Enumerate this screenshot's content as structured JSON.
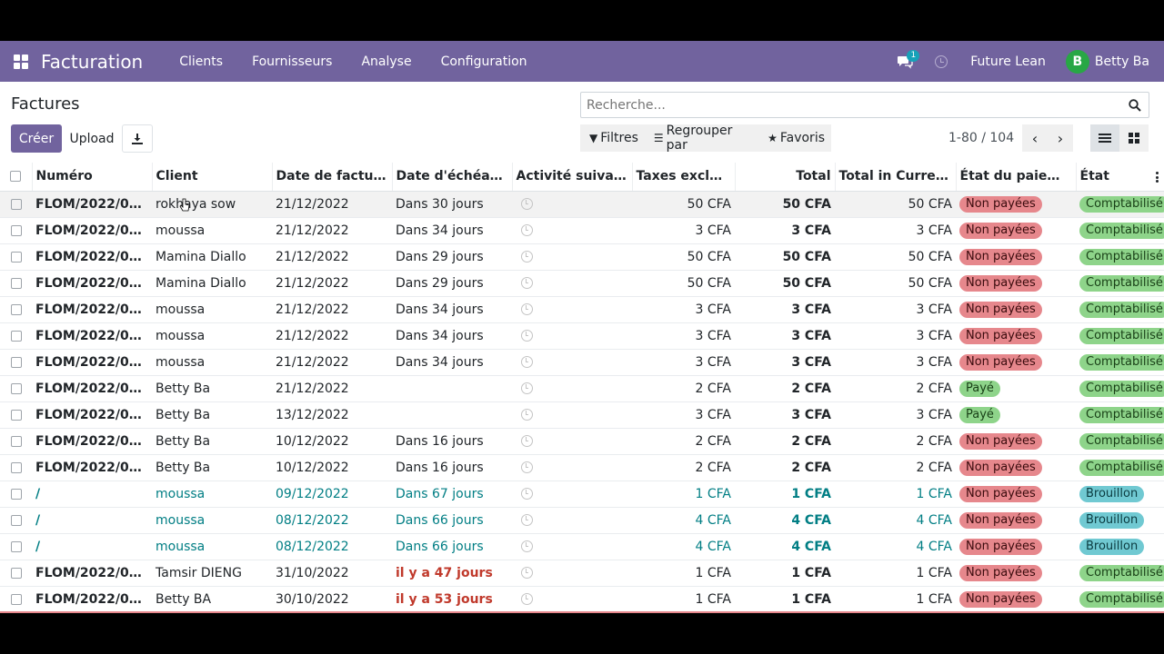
{
  "navbar": {
    "brand": "Facturation",
    "menu": [
      "Clients",
      "Fournisseurs",
      "Analyse",
      "Configuration"
    ],
    "chat_badge": "1",
    "company": "Future Lean",
    "user_initial": "B",
    "user_name": "Betty Ba",
    "color": "#71639e"
  },
  "control": {
    "title": "Factures",
    "create_label": "Créer",
    "upload_label": "Upload",
    "search_placeholder": "Recherche...",
    "filters_label": "Filtres",
    "group_by_label": "Regrouper par",
    "favorites_label": "Favoris",
    "pager": "1-80 / 104"
  },
  "table": {
    "columns": [
      "Numéro",
      "Client",
      "Date de factura...",
      "Date d'échéanc...",
      "Activité suiva...",
      "Taxes exclues...",
      "Total",
      "Total in Curren...",
      "État du paieme...",
      "État"
    ],
    "rows": [
      {
        "numero": "FLOM/2022/00...",
        "client": "rokhaya sow",
        "date": "21/12/2022",
        "due": "Dans 30 jours",
        "untaxed": "50 CFA",
        "total": "50 CFA",
        "total_cur": "50 CFA",
        "payment": "Non payées",
        "state": "Comptabilisé",
        "draft": false,
        "overdue": false
      },
      {
        "numero": "FLOM/2022/00...",
        "client": "moussa",
        "date": "21/12/2022",
        "due": "Dans 34 jours",
        "untaxed": "3 CFA",
        "total": "3 CFA",
        "total_cur": "3 CFA",
        "payment": "Non payées",
        "state": "Comptabilisé",
        "draft": false,
        "overdue": false
      },
      {
        "numero": "FLOM/2022/00...",
        "client": "Mamina Diallo",
        "date": "21/12/2022",
        "due": "Dans 29 jours",
        "untaxed": "50 CFA",
        "total": "50 CFA",
        "total_cur": "50 CFA",
        "payment": "Non payées",
        "state": "Comptabilisé",
        "draft": false,
        "overdue": false
      },
      {
        "numero": "FLOM/2022/00...",
        "client": "Mamina Diallo",
        "date": "21/12/2022",
        "due": "Dans 29 jours",
        "untaxed": "50 CFA",
        "total": "50 CFA",
        "total_cur": "50 CFA",
        "payment": "Non payées",
        "state": "Comptabilisé",
        "draft": false,
        "overdue": false
      },
      {
        "numero": "FLOM/2022/00...",
        "client": "moussa",
        "date": "21/12/2022",
        "due": "Dans 34 jours",
        "untaxed": "3 CFA",
        "total": "3 CFA",
        "total_cur": "3 CFA",
        "payment": "Non payées",
        "state": "Comptabilisé",
        "draft": false,
        "overdue": false
      },
      {
        "numero": "FLOM/2022/00...",
        "client": "moussa",
        "date": "21/12/2022",
        "due": "Dans 34 jours",
        "untaxed": "3 CFA",
        "total": "3 CFA",
        "total_cur": "3 CFA",
        "payment": "Non payées",
        "state": "Comptabilisé",
        "draft": false,
        "overdue": false
      },
      {
        "numero": "FLOM/2022/00...",
        "client": "moussa",
        "date": "21/12/2022",
        "due": "Dans 34 jours",
        "untaxed": "3 CFA",
        "total": "3 CFA",
        "total_cur": "3 CFA",
        "payment": "Non payées",
        "state": "Comptabilisé",
        "draft": false,
        "overdue": false
      },
      {
        "numero": "FLOM/2022/00...",
        "client": "Betty Ba",
        "date": "21/12/2022",
        "due": "",
        "untaxed": "2 CFA",
        "total": "2 CFA",
        "total_cur": "2 CFA",
        "payment": "Payé",
        "state": "Comptabilisé",
        "draft": false,
        "overdue": false
      },
      {
        "numero": "FLOM/2022/00...",
        "client": "Betty Ba",
        "date": "13/12/2022",
        "due": "",
        "untaxed": "3 CFA",
        "total": "3 CFA",
        "total_cur": "3 CFA",
        "payment": "Payé",
        "state": "Comptabilisé",
        "draft": false,
        "overdue": false
      },
      {
        "numero": "FLOM/2022/00...",
        "client": "Betty Ba",
        "date": "10/12/2022",
        "due": "Dans 16 jours",
        "untaxed": "2 CFA",
        "total": "2 CFA",
        "total_cur": "2 CFA",
        "payment": "Non payées",
        "state": "Comptabilisé",
        "draft": false,
        "overdue": false
      },
      {
        "numero": "FLOM/2022/00...",
        "client": "Betty Ba",
        "date": "10/12/2022",
        "due": "Dans 16 jours",
        "untaxed": "2 CFA",
        "total": "2 CFA",
        "total_cur": "2 CFA",
        "payment": "Non payées",
        "state": "Comptabilisé",
        "draft": false,
        "overdue": false
      },
      {
        "numero": "/",
        "client": "moussa",
        "date": "09/12/2022",
        "due": "Dans 67 jours",
        "untaxed": "1 CFA",
        "total": "1 CFA",
        "total_cur": "1 CFA",
        "payment": "Non payées",
        "state": "Brouillon",
        "draft": true,
        "overdue": false
      },
      {
        "numero": "/",
        "client": "moussa",
        "date": "08/12/2022",
        "due": "Dans 66 jours",
        "untaxed": "4 CFA",
        "total": "4 CFA",
        "total_cur": "4 CFA",
        "payment": "Non payées",
        "state": "Brouillon",
        "draft": true,
        "overdue": false
      },
      {
        "numero": "/",
        "client": "moussa",
        "date": "08/12/2022",
        "due": "Dans 66 jours",
        "untaxed": "4 CFA",
        "total": "4 CFA",
        "total_cur": "4 CFA",
        "payment": "Non payées",
        "state": "Brouillon",
        "draft": true,
        "overdue": false
      },
      {
        "numero": "FLOM/2022/00...",
        "client": "Tamsir DIENG",
        "date": "31/10/2022",
        "due": "il y a 47 jours",
        "untaxed": "1 CFA",
        "total": "1 CFA",
        "total_cur": "1 CFA",
        "payment": "Non payées",
        "state": "Comptabilisé",
        "draft": false,
        "overdue": true
      },
      {
        "numero": "FLOM/2022/00...",
        "client": "Betty BA",
        "date": "30/10/2022",
        "due": "il y a 53 jours",
        "untaxed": "1 CFA",
        "total": "1 CFA",
        "total_cur": "1 CFA",
        "payment": "Non payées",
        "state": "Comptabilisé",
        "draft": false,
        "overdue": true
      }
    ]
  }
}
